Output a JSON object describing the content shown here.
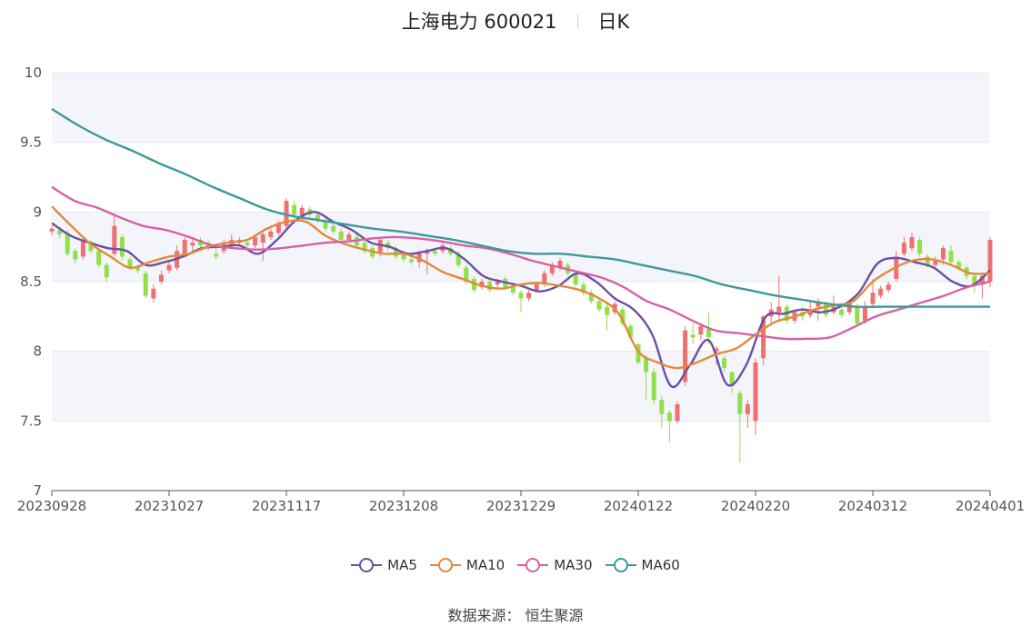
{
  "header": {
    "title": "上海电力 600021",
    "period": "日K"
  },
  "source": "数据来源： 恒生聚源",
  "colors": {
    "up": "#f07070",
    "down": "#8fe04a",
    "grid": "#e6e8f0",
    "band": "#f4f5fa",
    "MA5": "#6b4fa8",
    "MA10": "#e08a3c",
    "MA30": "#d760a8",
    "MA60": "#3a9a9a"
  },
  "chart_data": {
    "type": "candlestick",
    "title": "上海电力 600021 日K",
    "ylim": [
      7,
      10
    ],
    "yticks": [
      "7",
      "7.5",
      "8",
      "8.5",
      "9",
      "9.5",
      "10"
    ],
    "xtick_labels": [
      "20230928",
      "20231027",
      "20231117",
      "20231208",
      "20231229",
      "20240122",
      "20240220",
      "20240312",
      "20240401"
    ],
    "legend": [
      "MA5",
      "MA10",
      "MA30",
      "MA60"
    ],
    "legend_position": "bottom",
    "grid": true,
    "n_candles": 121,
    "candles": [
      [
        8.86,
        8.88,
        8.83,
        8.9
      ],
      [
        8.87,
        8.84,
        8.81,
        8.89
      ],
      [
        8.85,
        8.7,
        8.68,
        8.87
      ],
      [
        8.72,
        8.66,
        8.63,
        8.74
      ],
      [
        8.68,
        8.8,
        8.66,
        8.82
      ],
      [
        8.78,
        8.72,
        8.7,
        8.8
      ],
      [
        8.72,
        8.62,
        8.6,
        8.74
      ],
      [
        8.62,
        8.53,
        8.5,
        8.64
      ],
      [
        8.7,
        8.9,
        8.68,
        8.99
      ],
      [
        8.82,
        8.68,
        8.65,
        8.84
      ],
      [
        8.66,
        8.6,
        8.58,
        8.68
      ],
      [
        8.6,
        8.58,
        8.56,
        8.62
      ],
      [
        8.56,
        8.4,
        8.38,
        8.58
      ],
      [
        8.38,
        8.45,
        8.35,
        8.48
      ],
      [
        8.5,
        8.55,
        8.48,
        8.58
      ],
      [
        8.58,
        8.62,
        8.56,
        8.64
      ],
      [
        8.6,
        8.72,
        8.58,
        8.76
      ],
      [
        8.7,
        8.8,
        8.68,
        8.82
      ],
      [
        8.76,
        8.78,
        8.72,
        8.82
      ],
      [
        8.8,
        8.76,
        8.72,
        8.82
      ],
      [
        8.78,
        8.74,
        8.72,
        8.8
      ],
      [
        8.7,
        8.68,
        8.66,
        8.74
      ],
      [
        8.72,
        8.78,
        8.7,
        8.8
      ],
      [
        8.76,
        8.8,
        8.74,
        8.84
      ],
      [
        8.78,
        8.8,
        8.76,
        8.82
      ],
      [
        8.78,
        8.76,
        8.74,
        8.8
      ],
      [
        8.76,
        8.82,
        8.74,
        8.84
      ],
      [
        8.78,
        8.84,
        8.65,
        8.86
      ],
      [
        8.82,
        8.86,
        8.8,
        8.88
      ],
      [
        8.85,
        8.92,
        8.83,
        8.94
      ],
      [
        8.9,
        9.08,
        8.88,
        9.1
      ],
      [
        9.05,
        8.98,
        8.95,
        9.08
      ],
      [
        8.96,
        9.03,
        8.94,
        9.05
      ],
      [
        9.02,
        8.98,
        8.96,
        9.04
      ],
      [
        8.98,
        8.94,
        8.92,
        9.0
      ],
      [
        8.94,
        8.88,
        8.86,
        8.96
      ],
      [
        8.9,
        8.86,
        8.84,
        8.92
      ],
      [
        8.86,
        8.8,
        8.78,
        8.88
      ],
      [
        8.8,
        8.84,
        8.78,
        8.86
      ],
      [
        8.82,
        8.76,
        8.74,
        8.84
      ],
      [
        8.78,
        8.72,
        8.7,
        8.8
      ],
      [
        8.74,
        8.68,
        8.66,
        8.76
      ],
      [
        8.7,
        8.8,
        8.68,
        8.82
      ],
      [
        8.78,
        8.74,
        8.72,
        8.8
      ],
      [
        8.74,
        8.68,
        8.66,
        8.76
      ],
      [
        8.7,
        8.66,
        8.64,
        8.72
      ],
      [
        8.66,
        8.64,
        8.62,
        8.68
      ],
      [
        8.64,
        8.7,
        8.6,
        8.72
      ],
      [
        8.7,
        8.72,
        8.55,
        8.74
      ],
      [
        8.72,
        8.7,
        8.68,
        8.74
      ],
      [
        8.72,
        8.76,
        8.7,
        8.78
      ],
      [
        8.74,
        8.7,
        8.68,
        8.76
      ],
      [
        8.7,
        8.62,
        8.6,
        8.72
      ],
      [
        8.6,
        8.5,
        8.48,
        8.62
      ],
      [
        8.52,
        8.44,
        8.42,
        8.54
      ],
      [
        8.46,
        8.5,
        8.44,
        8.52
      ],
      [
        8.5,
        8.44,
        8.42,
        8.52
      ],
      [
        8.48,
        8.5,
        8.44,
        8.52
      ],
      [
        8.52,
        8.46,
        8.44,
        8.54
      ],
      [
        8.46,
        8.42,
        8.4,
        8.48
      ],
      [
        8.42,
        8.38,
        8.28,
        8.44
      ],
      [
        8.38,
        8.42,
        8.36,
        8.44
      ],
      [
        8.44,
        8.48,
        8.42,
        8.5
      ],
      [
        8.48,
        8.56,
        8.46,
        8.58
      ],
      [
        8.56,
        8.62,
        8.54,
        8.64
      ],
      [
        8.6,
        8.65,
        8.58,
        8.67
      ],
      [
        8.62,
        8.56,
        8.54,
        8.64
      ],
      [
        8.56,
        8.48,
        8.46,
        8.58
      ],
      [
        8.48,
        8.42,
        8.4,
        8.5
      ],
      [
        8.42,
        8.36,
        8.34,
        8.44
      ],
      [
        8.36,
        8.3,
        8.28,
        8.38
      ],
      [
        8.32,
        8.26,
        8.15,
        8.34
      ],
      [
        8.28,
        8.34,
        8.26,
        8.36
      ],
      [
        8.3,
        8.2,
        8.18,
        8.32
      ],
      [
        8.18,
        8.1,
        8.08,
        8.2
      ],
      [
        8.05,
        7.92,
        7.9,
        8.06
      ],
      [
        7.95,
        7.85,
        7.65,
        7.97
      ],
      [
        7.85,
        7.65,
        7.62,
        7.88
      ],
      [
        7.65,
        7.55,
        7.45,
        7.68
      ],
      [
        7.56,
        7.5,
        7.35,
        7.58
      ],
      [
        7.5,
        7.62,
        7.48,
        7.64
      ],
      [
        7.78,
        8.15,
        7.75,
        8.18
      ],
      [
        8.12,
        8.1,
        8.05,
        8.2
      ],
      [
        8.12,
        8.18,
        8.08,
        8.2
      ],
      [
        8.16,
        8.1,
        8.05,
        8.28
      ],
      [
        8.0,
        8.02,
        7.9,
        8.04
      ],
      [
        7.95,
        7.88,
        7.85,
        7.97
      ],
      [
        7.85,
        7.75,
        7.7,
        7.86
      ],
      [
        7.7,
        7.55,
        7.2,
        7.72
      ],
      [
        7.55,
        7.62,
        7.45,
        7.65
      ],
      [
        7.5,
        7.92,
        7.4,
        7.95
      ],
      [
        7.95,
        8.25,
        7.9,
        8.26
      ],
      [
        8.25,
        8.3,
        8.2,
        8.35
      ],
      [
        8.28,
        8.32,
        8.22,
        8.54
      ],
      [
        8.32,
        8.22,
        8.2,
        8.34
      ],
      [
        8.22,
        8.28,
        8.2,
        8.3
      ],
      [
        8.28,
        8.25,
        8.22,
        8.32
      ],
      [
        8.26,
        8.3,
        8.24,
        8.36
      ],
      [
        8.32,
        8.36,
        8.22,
        8.38
      ],
      [
        8.34,
        8.26,
        8.24,
        8.36
      ],
      [
        8.28,
        8.32,
        8.26,
        8.4
      ],
      [
        8.3,
        8.26,
        8.24,
        8.32
      ],
      [
        8.28,
        8.35,
        8.26,
        8.37
      ],
      [
        8.32,
        8.2,
        8.18,
        8.34
      ],
      [
        8.22,
        8.32,
        8.2,
        8.36
      ],
      [
        8.34,
        8.42,
        8.32,
        8.52
      ],
      [
        8.4,
        8.45,
        8.38,
        8.47
      ],
      [
        8.44,
        8.48,
        8.42,
        8.5
      ],
      [
        8.52,
        8.68,
        8.5,
        8.72
      ],
      [
        8.7,
        8.78,
        8.68,
        8.82
      ],
      [
        8.74,
        8.82,
        8.72,
        8.85
      ],
      [
        8.8,
        8.7,
        8.68,
        8.82
      ],
      [
        8.68,
        8.62,
        8.6,
        8.7
      ],
      [
        8.62,
        8.66,
        8.6,
        8.68
      ],
      [
        8.66,
        8.74,
        8.62,
        8.76
      ],
      [
        8.72,
        8.64,
        8.62,
        8.76
      ],
      [
        8.64,
        8.6,
        8.58,
        8.66
      ],
      [
        8.6,
        8.54,
        8.52,
        8.62
      ],
      [
        8.54,
        8.48,
        8.42,
        8.56
      ],
      [
        8.48,
        8.54,
        8.38,
        8.56
      ],
      [
        8.5,
        8.8,
        8.46,
        8.82
      ]
    ],
    "series": [
      {
        "name": "MA5",
        "values": [
          8.92,
          8.83,
          8.78,
          8.74,
          8.72,
          8.62,
          8.64,
          8.68,
          8.74,
          8.75,
          8.76,
          8.7,
          8.8,
          8.94,
          9.0,
          8.93,
          8.87,
          8.78,
          8.75,
          8.7,
          8.72,
          8.74,
          8.66,
          8.54,
          8.5,
          8.47,
          8.43,
          8.47,
          8.56,
          8.5,
          8.38,
          8.3,
          8.12,
          7.75,
          7.9,
          8.08,
          7.76,
          7.9,
          8.24,
          8.27,
          8.3,
          8.28,
          8.32,
          8.42,
          8.63,
          8.67,
          8.64,
          8.6,
          8.5,
          8.47,
          8.58
        ]
      },
      {
        "name": "MA10",
        "values": [
          9.04,
          8.9,
          8.77,
          8.68,
          8.6,
          8.64,
          8.68,
          8.7,
          8.75,
          8.78,
          8.8,
          8.88,
          8.93,
          8.93,
          8.83,
          8.77,
          8.73,
          8.7,
          8.7,
          8.65,
          8.57,
          8.52,
          8.47,
          8.45,
          8.48,
          8.49,
          8.47,
          8.44,
          8.38,
          8.27,
          8.0,
          7.92,
          7.88,
          7.92,
          7.98,
          8.02,
          8.12,
          8.21,
          8.25,
          8.3,
          8.33,
          8.36,
          8.5,
          8.59,
          8.65,
          8.66,
          8.62,
          8.56,
          8.56
        ]
      },
      {
        "name": "MA30",
        "values": [
          9.18,
          9.08,
          9.03,
          8.96,
          8.9,
          8.87,
          8.82,
          8.76,
          8.74,
          8.73,
          8.74,
          8.76,
          8.78,
          8.79,
          8.81,
          8.82,
          8.81,
          8.79,
          8.76,
          8.74,
          8.7,
          8.65,
          8.61,
          8.57,
          8.53,
          8.46,
          8.36,
          8.3,
          8.22,
          8.15,
          8.13,
          8.11,
          8.09,
          8.09,
          8.1,
          8.17,
          8.25,
          8.3,
          8.35,
          8.4,
          8.46,
          8.5
        ]
      },
      {
        "name": "MA60",
        "values": [
          9.74,
          9.62,
          9.52,
          9.44,
          9.35,
          9.27,
          9.18,
          9.1,
          9.02,
          8.97,
          8.94,
          8.91,
          8.88,
          8.86,
          8.83,
          8.8,
          8.76,
          8.72,
          8.7,
          8.7,
          8.68,
          8.66,
          8.62,
          8.58,
          8.54,
          8.48,
          8.44,
          8.4,
          8.37,
          8.34,
          8.32,
          8.32,
          8.32,
          8.32,
          8.32,
          8.32
        ]
      }
    ]
  }
}
